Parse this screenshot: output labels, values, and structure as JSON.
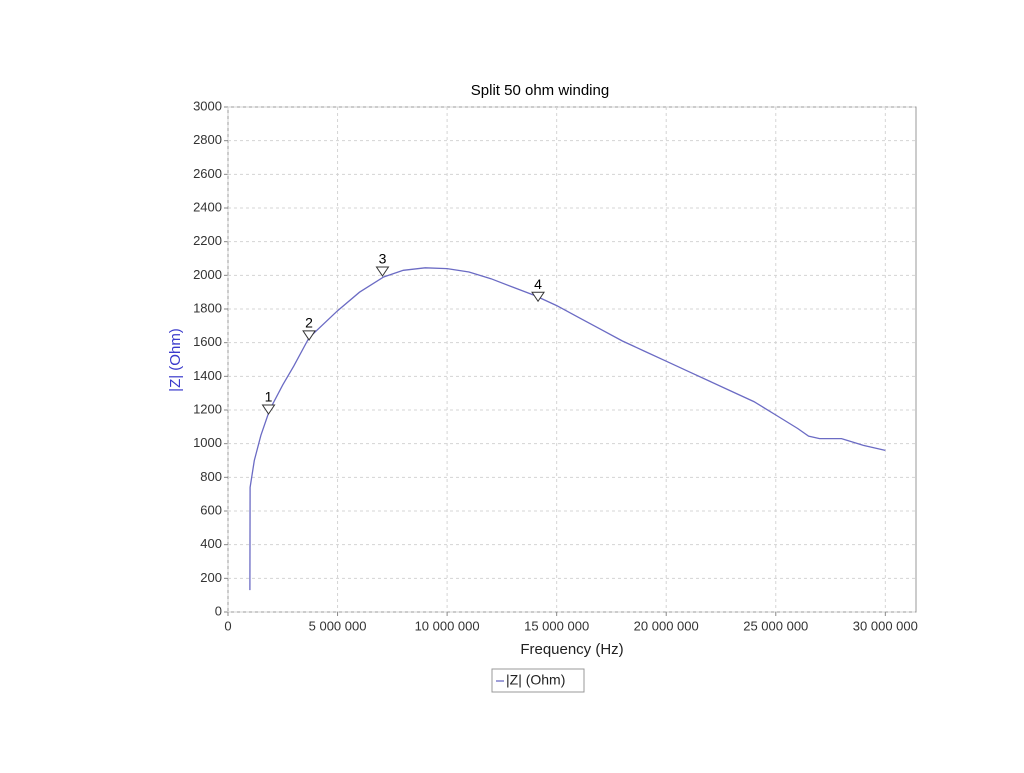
{
  "chart_data": {
    "type": "line",
    "title": "Split 50 ohm winding",
    "x_label": "Frequency (Hz)",
    "y_label": "|Z| (Ohm)",
    "xlim": [
      0,
      31400000
    ],
    "ylim": [
      0,
      3000
    ],
    "xticks": [
      0,
      {
        "value": 5000000,
        "label": "5 000 000"
      },
      {
        "value": 10000000,
        "label": "10 000 000"
      },
      {
        "value": 15000000,
        "label": "15 000 000"
      },
      {
        "value": 20000000,
        "label": "20 000 000"
      },
      {
        "value": 25000000,
        "label": "25 000 000"
      },
      {
        "value": 30000000,
        "label": "30 000 000"
      }
    ],
    "yticks": [
      0,
      200,
      400,
      600,
      800,
      1000,
      1200,
      1400,
      1600,
      1800,
      2000,
      2200,
      2400,
      2600,
      2800,
      3000
    ],
    "grid": true,
    "series": [
      {
        "name": "|Z| (Ohm)",
        "color": "#6b6bc4",
        "x": [
          1000000,
          1010000,
          1200000,
          1500000,
          1900000,
          2500000,
          3000000,
          3700000,
          5000000,
          6000000,
          7100000,
          8000000,
          9000000,
          10000000,
          11000000,
          12000000,
          13000000,
          14000000,
          15000000,
          16000000,
          17000000,
          18000000,
          19000000,
          20000000,
          21000000,
          22000000,
          23000000,
          24000000,
          25000000,
          26000000,
          26500000,
          27000000,
          28000000,
          28500000,
          29000000,
          30000000
        ],
        "values": [
          130,
          740,
          900,
          1050,
          1200,
          1350,
          1460,
          1630,
          1790,
          1900,
          1990,
          2030,
          2045,
          2040,
          2020,
          1980,
          1930,
          1880,
          1820,
          1750,
          1680,
          1610,
          1550,
          1490,
          1430,
          1370,
          1310,
          1250,
          1170,
          1090,
          1045,
          1030,
          1030,
          1010,
          990,
          960
        ]
      }
    ],
    "markers": [
      {
        "label": "1",
        "x": 1850000,
        "y": 1200
      },
      {
        "label": "2",
        "x": 3700000,
        "y": 1640
      },
      {
        "label": "3",
        "x": 7050000,
        "y": 2020
      },
      {
        "label": "4",
        "x": 14150000,
        "y": 1870
      }
    ],
    "legend": "bottom"
  }
}
